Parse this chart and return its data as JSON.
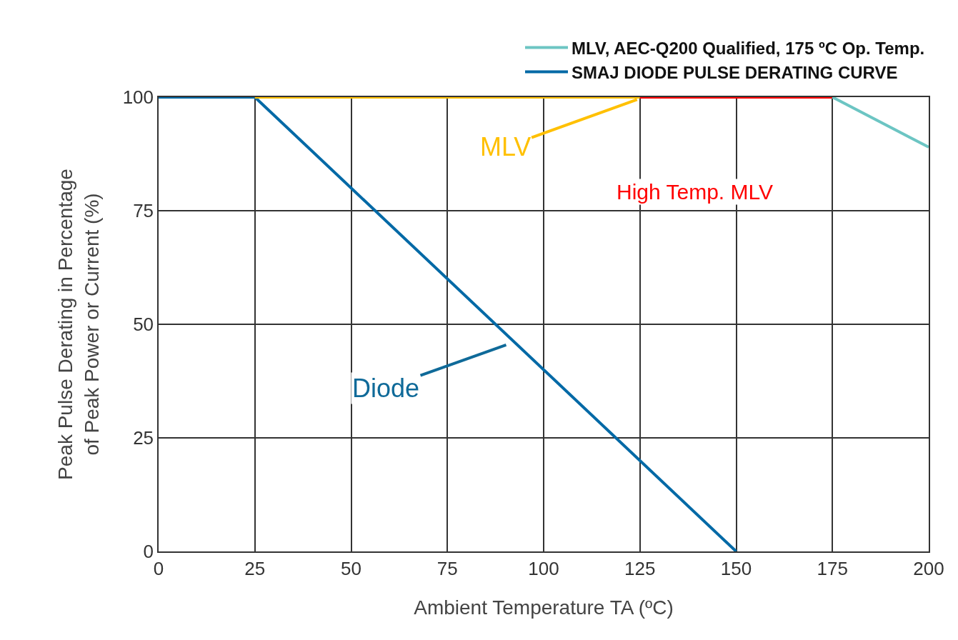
{
  "chart_data": {
    "type": "line",
    "xlabel": "Ambient Temperature TA (ºC)",
    "ylabel": "Peak Pulse Derating in Percentage\nof Peak Power or Current (%)",
    "series": [
      {
        "name": "SMAJ DIODE PULSE DERATING CURVE",
        "color": "#0069a6",
        "x": [
          0,
          25,
          150
        ],
        "values": [
          100,
          100,
          0
        ]
      },
      {
        "color": "#ffc000",
        "x": [
          25,
          125
        ],
        "values": [
          100,
          100
        ]
      },
      {
        "color": "#ff0000",
        "x": [
          125,
          175
        ],
        "values": [
          100,
          100
        ]
      },
      {
        "name": "MLV, AEC-Q200 Qualified, 175 ºC Op. Temp.",
        "color": "#6cc5c3",
        "x": [
          175,
          200
        ],
        "values": [
          100,
          89
        ]
      }
    ],
    "annotations": [
      {
        "text": "MLV",
        "x": 126,
        "y": 100
      },
      "High Temp. MLV",
      {
        "text": "Diode",
        "x": 92,
        "y": 46
      }
    ],
    "xlim": [
      0,
      200
    ],
    "xticks": [
      0,
      25,
      50,
      75,
      100,
      125,
      150,
      175,
      200
    ],
    "ylim": [
      0,
      100
    ],
    "yticks": [
      0,
      25,
      50,
      75,
      100
    ],
    "grid": true,
    "legend": "top right",
    "marker": "none",
    "line_style": "solid"
  }
}
